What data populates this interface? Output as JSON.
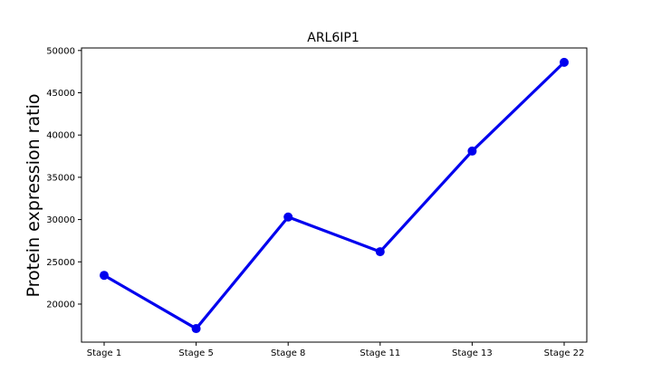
{
  "chart_data": {
    "type": "line",
    "title": "ARL6IP1",
    "xlabel": "",
    "ylabel": "Protein expression ratio",
    "categories": [
      "Stage 1",
      "Stage 5",
      "Stage 8",
      "Stage 11",
      "Stage 13",
      "Stage 22"
    ],
    "series": [
      {
        "values": [
          23400,
          17100,
          30300,
          26200,
          38100,
          48600
        ]
      }
    ],
    "yticks": [
      20000,
      25000,
      30000,
      35000,
      40000,
      45000,
      50000
    ],
    "ylim": [
      15500,
      50300
    ],
    "grid": false,
    "colors": {
      "line": "#0000ee",
      "marker": "#0000ee"
    }
  }
}
